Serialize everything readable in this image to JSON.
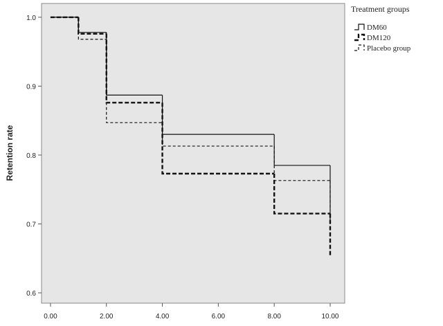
{
  "chart_data": {
    "type": "step",
    "y_label": "Retention rate",
    "legend_title": "Treatment groups",
    "legend_position": "outside-top-right",
    "x": [
      0,
      1,
      2,
      4,
      8,
      10
    ],
    "xlim": [
      -0.32,
      10.52
    ],
    "xticks": [
      {
        "value": 0,
        "label": "0.00"
      },
      {
        "value": 2,
        "label": "2.00"
      },
      {
        "value": 4,
        "label": "4.00"
      },
      {
        "value": 6,
        "label": "6.00"
      },
      {
        "value": 8,
        "label": "8.00"
      },
      {
        "value": 10,
        "label": "10.00"
      }
    ],
    "ylim": [
      0.585,
      1.02
    ],
    "yticks": [
      {
        "value": 0.6,
        "label": "0.6"
      },
      {
        "value": 0.7,
        "label": "0.7"
      },
      {
        "value": 0.8,
        "label": "0.8"
      },
      {
        "value": 0.9,
        "label": "0.9"
      },
      {
        "value": 1.0,
        "label": "1.0"
      }
    ],
    "series": [
      {
        "name": "DM60",
        "color": "#111111",
        "style": "solid",
        "values": [
          1.0,
          0.978,
          0.887,
          0.83,
          0.785,
          0.7
        ]
      },
      {
        "name": "DM120",
        "color": "#111111",
        "style": "thick-dashed",
        "values": [
          1.0,
          0.976,
          0.876,
          0.773,
          0.715,
          0.653
        ]
      },
      {
        "name": "Placebo group",
        "color": "#111111",
        "style": "dashed",
        "values": [
          1.0,
          0.968,
          0.847,
          0.813,
          0.763,
          0.72
        ]
      }
    ]
  }
}
